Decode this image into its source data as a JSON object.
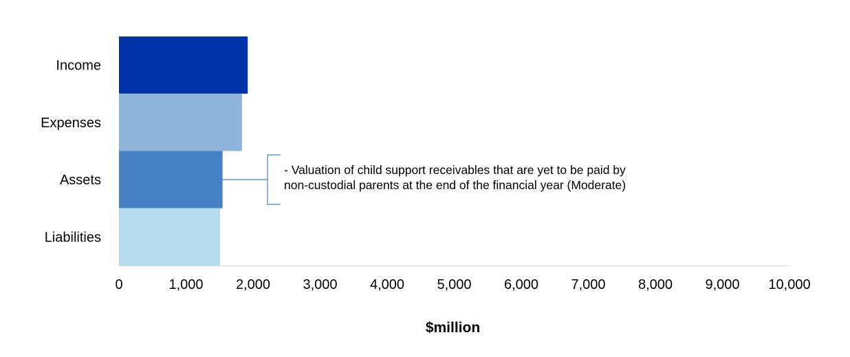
{
  "chart_data": {
    "type": "bar",
    "orientation": "horizontal",
    "categories": [
      "Income",
      "Expenses",
      "Assets",
      "Liabilities"
    ],
    "values": [
      1920,
      1835,
      1545,
      1510
    ],
    "colors": [
      "#0033AA",
      "#8EB4DB",
      "#4581C4",
      "#B7DCEE"
    ],
    "xlabel": "$million",
    "xlim": [
      0,
      10000
    ],
    "xticks": [
      0,
      1000,
      2000,
      3000,
      4000,
      5000,
      6000,
      7000,
      8000,
      9000,
      10000
    ],
    "xtick_labels": [
      "0",
      "1,000",
      "2,000",
      "3,000",
      "4,000",
      "5,000",
      "6,000",
      "7,000",
      "8,000",
      "9,000",
      "10,000"
    ],
    "grid": false,
    "legend": "none",
    "annotations": [
      {
        "category": "Assets",
        "lines": [
          "- Valuation of child support receivables that are yet to be paid by",
          "non-custodial parents at the end of the financial year (Moderate)"
        ]
      }
    ]
  },
  "colors": {
    "axis": "#D9D9D9",
    "bracket": "#4581C4"
  }
}
